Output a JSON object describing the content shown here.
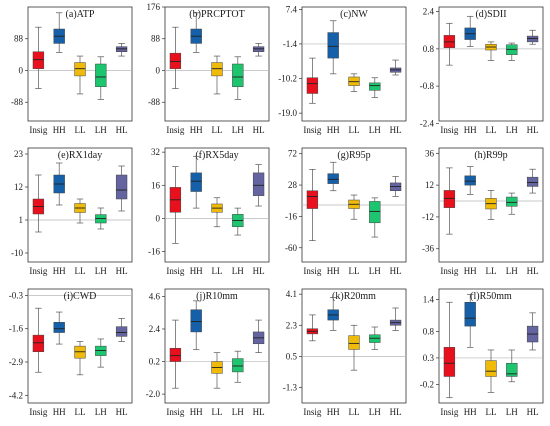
{
  "chart_data": {
    "type": "box",
    "groups": [
      "Insig",
      "HH",
      "LL",
      "LH",
      "HL"
    ],
    "colors": {
      "Insig": "#e8101c",
      "HH": "#1560a8",
      "LL": "#f0bb08",
      "LH": "#1dc56e",
      "HL": "#6464a0"
    },
    "panels": [
      {
        "title": "(a)ATP",
        "ylim": [
          -140,
          176
        ],
        "ticks": [
          {
            "v": 88,
            "label": "88"
          },
          {
            "v": 0,
            "label": "0"
          },
          {
            "v": -88,
            "label": "-88"
          }
        ],
        "ref": 0,
        "boxes": [
          {
            "group": "Insig",
            "q1": 5,
            "median": 30,
            "q3": 52,
            "min": -50,
            "max": 120
          },
          {
            "group": "HH",
            "q1": 75,
            "median": 95,
            "q3": 115,
            "min": 50,
            "max": 160
          },
          {
            "group": "LL",
            "q1": -15,
            "median": 5,
            "q3": 22,
            "min": -65,
            "max": 40
          },
          {
            "group": "LH",
            "q1": -45,
            "median": -18,
            "q3": 18,
            "min": -80,
            "max": 38
          },
          {
            "group": "HL",
            "q1": 52,
            "median": 60,
            "q3": 66,
            "min": 40,
            "max": 75
          }
        ]
      },
      {
        "title": "(b)PRCPTOT",
        "ylim": [
          -140,
          176
        ],
        "ticks": [
          {
            "v": 176,
            "label": "176"
          },
          {
            "v": 88,
            "label": "88"
          },
          {
            "v": 0,
            "label": "0"
          },
          {
            "v": -88,
            "label": "-88"
          }
        ],
        "ref": 0,
        "boxes": [
          {
            "group": "Insig",
            "q1": 5,
            "median": 25,
            "q3": 48,
            "min": -50,
            "max": 120
          },
          {
            "group": "HH",
            "q1": 75,
            "median": 95,
            "q3": 115,
            "min": 50,
            "max": 160
          },
          {
            "group": "LL",
            "q1": -15,
            "median": 5,
            "q3": 22,
            "min": -65,
            "max": 40
          },
          {
            "group": "LH",
            "q1": -45,
            "median": -18,
            "q3": 18,
            "min": -80,
            "max": 38
          },
          {
            "group": "HL",
            "q1": 52,
            "median": 60,
            "q3": 66,
            "min": 40,
            "max": 75
          }
        ]
      },
      {
        "title": "(c)NW",
        "ylim": [
          -21,
          8
        ],
        "ticks": [
          {
            "v": 7.4,
            "label": "7.4"
          },
          {
            "v": -1.4,
            "label": "-1.4"
          },
          {
            "v": -10.2,
            "label": "-10.2"
          },
          {
            "v": -19,
            "label": "-19.0"
          }
        ],
        "ref": -1.4,
        "boxes": [
          {
            "group": "Insig",
            "q1": -14,
            "median": -11.5,
            "q3": -10,
            "min": -16.5,
            "max": -5
          },
          {
            "group": "HH",
            "q1": -5,
            "median": -2,
            "q3": 1.5,
            "min": -9,
            "max": 4.5
          },
          {
            "group": "LL",
            "q1": -12,
            "median": -11,
            "q3": -9.8,
            "min": -13.5,
            "max": -9
          },
          {
            "group": "LH",
            "q1": -13.2,
            "median": -12,
            "q3": -11.3,
            "min": -15,
            "max": -10
          },
          {
            "group": "HL",
            "q1": -8.6,
            "median": -8,
            "q3": -7.5,
            "min": -9.3,
            "max": -5.5
          }
        ]
      },
      {
        "title": "(d)SDII",
        "ylim": [
          -2.3,
          2.6
        ],
        "ticks": [
          {
            "v": 2.4,
            "label": "2.4"
          },
          {
            "v": 0.8,
            "label": "0.8"
          },
          {
            "v": -0.8,
            "label": "-0.8"
          },
          {
            "v": -2.4,
            "label": "-2.4"
          }
        ],
        "ref": 0.8,
        "boxes": [
          {
            "group": "Insig",
            "q1": 0.85,
            "median": 1.1,
            "q3": 1.38,
            "min": 0.1,
            "max": 1.9
          },
          {
            "group": "HH",
            "q1": 1.2,
            "median": 1.45,
            "q3": 1.7,
            "min": 0.9,
            "max": 2.2
          },
          {
            "group": "LL",
            "q1": 0.75,
            "median": 0.88,
            "q3": 1.0,
            "min": 0.3,
            "max": 1.1
          },
          {
            "group": "LH",
            "q1": 0.55,
            "median": 0.78,
            "q3": 0.98,
            "min": 0.3,
            "max": 1.05
          },
          {
            "group": "HL",
            "q1": 1.1,
            "median": 1.25,
            "q3": 1.35,
            "min": 1.0,
            "max": 1.6
          }
        ]
      },
      {
        "title": "(e)RX1day",
        "ylim": [
          -13,
          25
        ],
        "ticks": [
          {
            "v": 23,
            "label": "23"
          },
          {
            "v": 12,
            "label": "12"
          },
          {
            "v": 1,
            "label": "1"
          },
          {
            "v": -10,
            "label": "-10"
          }
        ],
        "ref": 1,
        "boxes": [
          {
            "group": "Insig",
            "q1": 3,
            "median": 5.5,
            "q3": 8,
            "min": -3,
            "max": 16
          },
          {
            "group": "HH",
            "q1": 10,
            "median": 13,
            "q3": 16,
            "min": 6,
            "max": 20
          },
          {
            "group": "LL",
            "q1": 3.5,
            "median": 5,
            "q3": 6.5,
            "min": 0,
            "max": 8
          },
          {
            "group": "LH",
            "q1": 0,
            "median": 1.5,
            "q3": 2.8,
            "min": -2,
            "max": 5
          },
          {
            "group": "HL",
            "q1": 8,
            "median": 11,
            "q3": 16,
            "min": 4,
            "max": 19
          }
        ]
      },
      {
        "title": "(f)RX5day",
        "ylim": [
          -21,
          34
        ],
        "ticks": [
          {
            "v": 32,
            "label": "32"
          },
          {
            "v": 16,
            "label": "16"
          },
          {
            "v": 0,
            "label": "0"
          },
          {
            "v": -16,
            "label": "-16"
          }
        ],
        "ref": 0,
        "boxes": [
          {
            "group": "Insig",
            "q1": 3,
            "median": 9,
            "q3": 15,
            "min": -12,
            "max": 25
          },
          {
            "group": "HH",
            "q1": 13,
            "median": 18,
            "q3": 22,
            "min": 5,
            "max": 30
          },
          {
            "group": "LL",
            "q1": 3,
            "median": 5,
            "q3": 7,
            "min": -4,
            "max": 10
          },
          {
            "group": "LH",
            "q1": -4,
            "median": -1,
            "q3": 2,
            "min": -8,
            "max": 5
          },
          {
            "group": "HL",
            "q1": 11,
            "median": 16,
            "q3": 22,
            "min": 6,
            "max": 26
          }
        ]
      },
      {
        "title": "(g)R95p",
        "ylim": [
          -80,
          80
        ],
        "ticks": [
          {
            "v": 72,
            "label": "72"
          },
          {
            "v": 28,
            "label": "28"
          },
          {
            "v": -16,
            "label": "-16"
          },
          {
            "v": -60,
            "label": "-60"
          }
        ],
        "ref": 0,
        "boxes": [
          {
            "group": "Insig",
            "q1": -5,
            "median": 12,
            "q3": 20,
            "min": -50,
            "max": 50
          },
          {
            "group": "HH",
            "q1": 30,
            "median": 36,
            "q3": 44,
            "min": 20,
            "max": 60
          },
          {
            "group": "LL",
            "q1": -5,
            "median": 1,
            "q3": 7,
            "min": -20,
            "max": 14
          },
          {
            "group": "LH",
            "q1": -25,
            "median": -9,
            "q3": 5,
            "min": -45,
            "max": 10
          },
          {
            "group": "HL",
            "q1": 20,
            "median": 26,
            "q3": 31,
            "min": 12,
            "max": 40
          }
        ]
      },
      {
        "title": "(h)R99p",
        "ylim": [
          -46,
          40
        ],
        "ticks": [
          {
            "v": 36,
            "label": "36"
          },
          {
            "v": 12,
            "label": "12"
          },
          {
            "v": -12,
            "label": "-12"
          },
          {
            "v": -36,
            "label": "-36"
          }
        ],
        "ref": 0,
        "boxes": [
          {
            "group": "Insig",
            "q1": -5,
            "median": 2,
            "q3": 8,
            "min": -25,
            "max": 25
          },
          {
            "group": "HH",
            "q1": 12,
            "median": 15,
            "q3": 19,
            "min": 5,
            "max": 26
          },
          {
            "group": "LL",
            "q1": -6,
            "median": -2,
            "q3": 2,
            "min": -14,
            "max": 8
          },
          {
            "group": "LH",
            "q1": -4,
            "median": -1,
            "q3": 3,
            "min": -10,
            "max": 6
          },
          {
            "group": "HL",
            "q1": 11,
            "median": 14,
            "q3": 18,
            "min": 6,
            "max": 24
          }
        ]
      },
      {
        "title": "(i)CWD",
        "ylim": [
          -4.5,
          -0.05
        ],
        "ticks": [
          {
            "v": -0.3,
            "label": "-0.3"
          },
          {
            "v": -1.6,
            "label": "-1.6"
          },
          {
            "v": -2.9,
            "label": "-2.9"
          },
          {
            "v": -4.2,
            "label": "-4.2"
          }
        ],
        "ref": -0.3,
        "boxes": [
          {
            "group": "Insig",
            "q1": -2.5,
            "median": -2.15,
            "q3": -1.85,
            "min": -3.3,
            "max": -0.8
          },
          {
            "group": "HH",
            "q1": -1.75,
            "median": -1.6,
            "q3": -1.35,
            "min": -2.2,
            "max": -0.95
          },
          {
            "group": "LL",
            "q1": -2.75,
            "median": -2.5,
            "q3": -2.28,
            "min": -3.4,
            "max": -2.1
          },
          {
            "group": "LH",
            "q1": -2.65,
            "median": -2.45,
            "q3": -2.28,
            "min": -3.1,
            "max": -2.0
          },
          {
            "group": "HL",
            "q1": -1.9,
            "median": -1.75,
            "q3": -1.52,
            "min": -2.1,
            "max": -1.2
          }
        ]
      },
      {
        "title": "(j)R10mm",
        "ylim": [
          -2.6,
          5.1
        ],
        "ticks": [
          {
            "v": 4.6,
            "label": "4.6"
          },
          {
            "v": 2.4,
            "label": "2.4"
          },
          {
            "v": 0.2,
            "label": "0.2"
          },
          {
            "v": -2.0,
            "label": "-2.0"
          }
        ],
        "ref": 0.2,
        "boxes": [
          {
            "group": "Insig",
            "q1": 0.2,
            "median": 0.6,
            "q3": 1.1,
            "min": -1.6,
            "max": 3.0
          },
          {
            "group": "HH",
            "q1": 2.2,
            "median": 2.9,
            "q3": 3.7,
            "min": 1.0,
            "max": 4.3
          },
          {
            "group": "LL",
            "q1": -0.6,
            "median": -0.2,
            "q3": 0.2,
            "min": -1.6,
            "max": 0.8
          },
          {
            "group": "LH",
            "q1": -0.5,
            "median": -0.1,
            "q3": 0.4,
            "min": -1.2,
            "max": 0.9
          },
          {
            "group": "HL",
            "q1": 1.4,
            "median": 1.8,
            "q3": 2.2,
            "min": 0.8,
            "max": 3.0
          }
        ]
      },
      {
        "title": "(k)R20mm",
        "ylim": [
          -2.2,
          4.4
        ],
        "ticks": [
          {
            "v": 4.1,
            "label": "4.1"
          },
          {
            "v": 2.3,
            "label": "2.3"
          },
          {
            "v": 0.5,
            "label": "0.5"
          },
          {
            "v": -1.3,
            "label": "-1.3"
          }
        ],
        "ref": 0.5,
        "boxes": [
          {
            "group": "Insig",
            "q1": 1.8,
            "median": 1.95,
            "q3": 2.1,
            "min": 1.4,
            "max": 2.9
          },
          {
            "group": "HH",
            "q1": 2.6,
            "median": 2.9,
            "q3": 3.2,
            "min": 2.0,
            "max": 3.9
          },
          {
            "group": "LL",
            "q1": 0.9,
            "median": 1.25,
            "q3": 1.7,
            "min": -0.3,
            "max": 2.3
          },
          {
            "group": "LH",
            "q1": 1.3,
            "median": 1.55,
            "q3": 1.75,
            "min": 0.9,
            "max": 2.2
          },
          {
            "group": "HL",
            "q1": 2.3,
            "median": 2.45,
            "q3": 2.6,
            "min": 2.0,
            "max": 3.3
          }
        ]
      },
      {
        "title": "(l)R50mm",
        "ylim": [
          -0.55,
          1.6
        ],
        "ticks": [
          {
            "v": 1.4,
            "label": "1.4"
          },
          {
            "v": 0.8,
            "label": "0.8"
          },
          {
            "v": 0.3,
            "label": "0.3"
          },
          {
            "v": -0.2,
            "label": "-0.2"
          }
        ],
        "ref": 0.3,
        "boxes": [
          {
            "group": "Insig",
            "q1": -0.05,
            "median": 0.2,
            "q3": 0.5,
            "min": -0.45,
            "max": 1.35
          },
          {
            "group": "HH",
            "q1": 0.9,
            "median": 1.05,
            "q3": 1.35,
            "min": 0.5,
            "max": 1.5
          },
          {
            "group": "LL",
            "q1": -0.05,
            "median": 0.05,
            "q3": 0.25,
            "min": -0.35,
            "max": 0.45
          },
          {
            "group": "LH",
            "q1": -0.05,
            "median": 0.0,
            "q3": 0.2,
            "min": -0.15,
            "max": 0.45
          },
          {
            "group": "HL",
            "q1": 0.6,
            "median": 0.75,
            "q3": 0.9,
            "min": 0.45,
            "max": 1.15
          }
        ]
      }
    ]
  }
}
